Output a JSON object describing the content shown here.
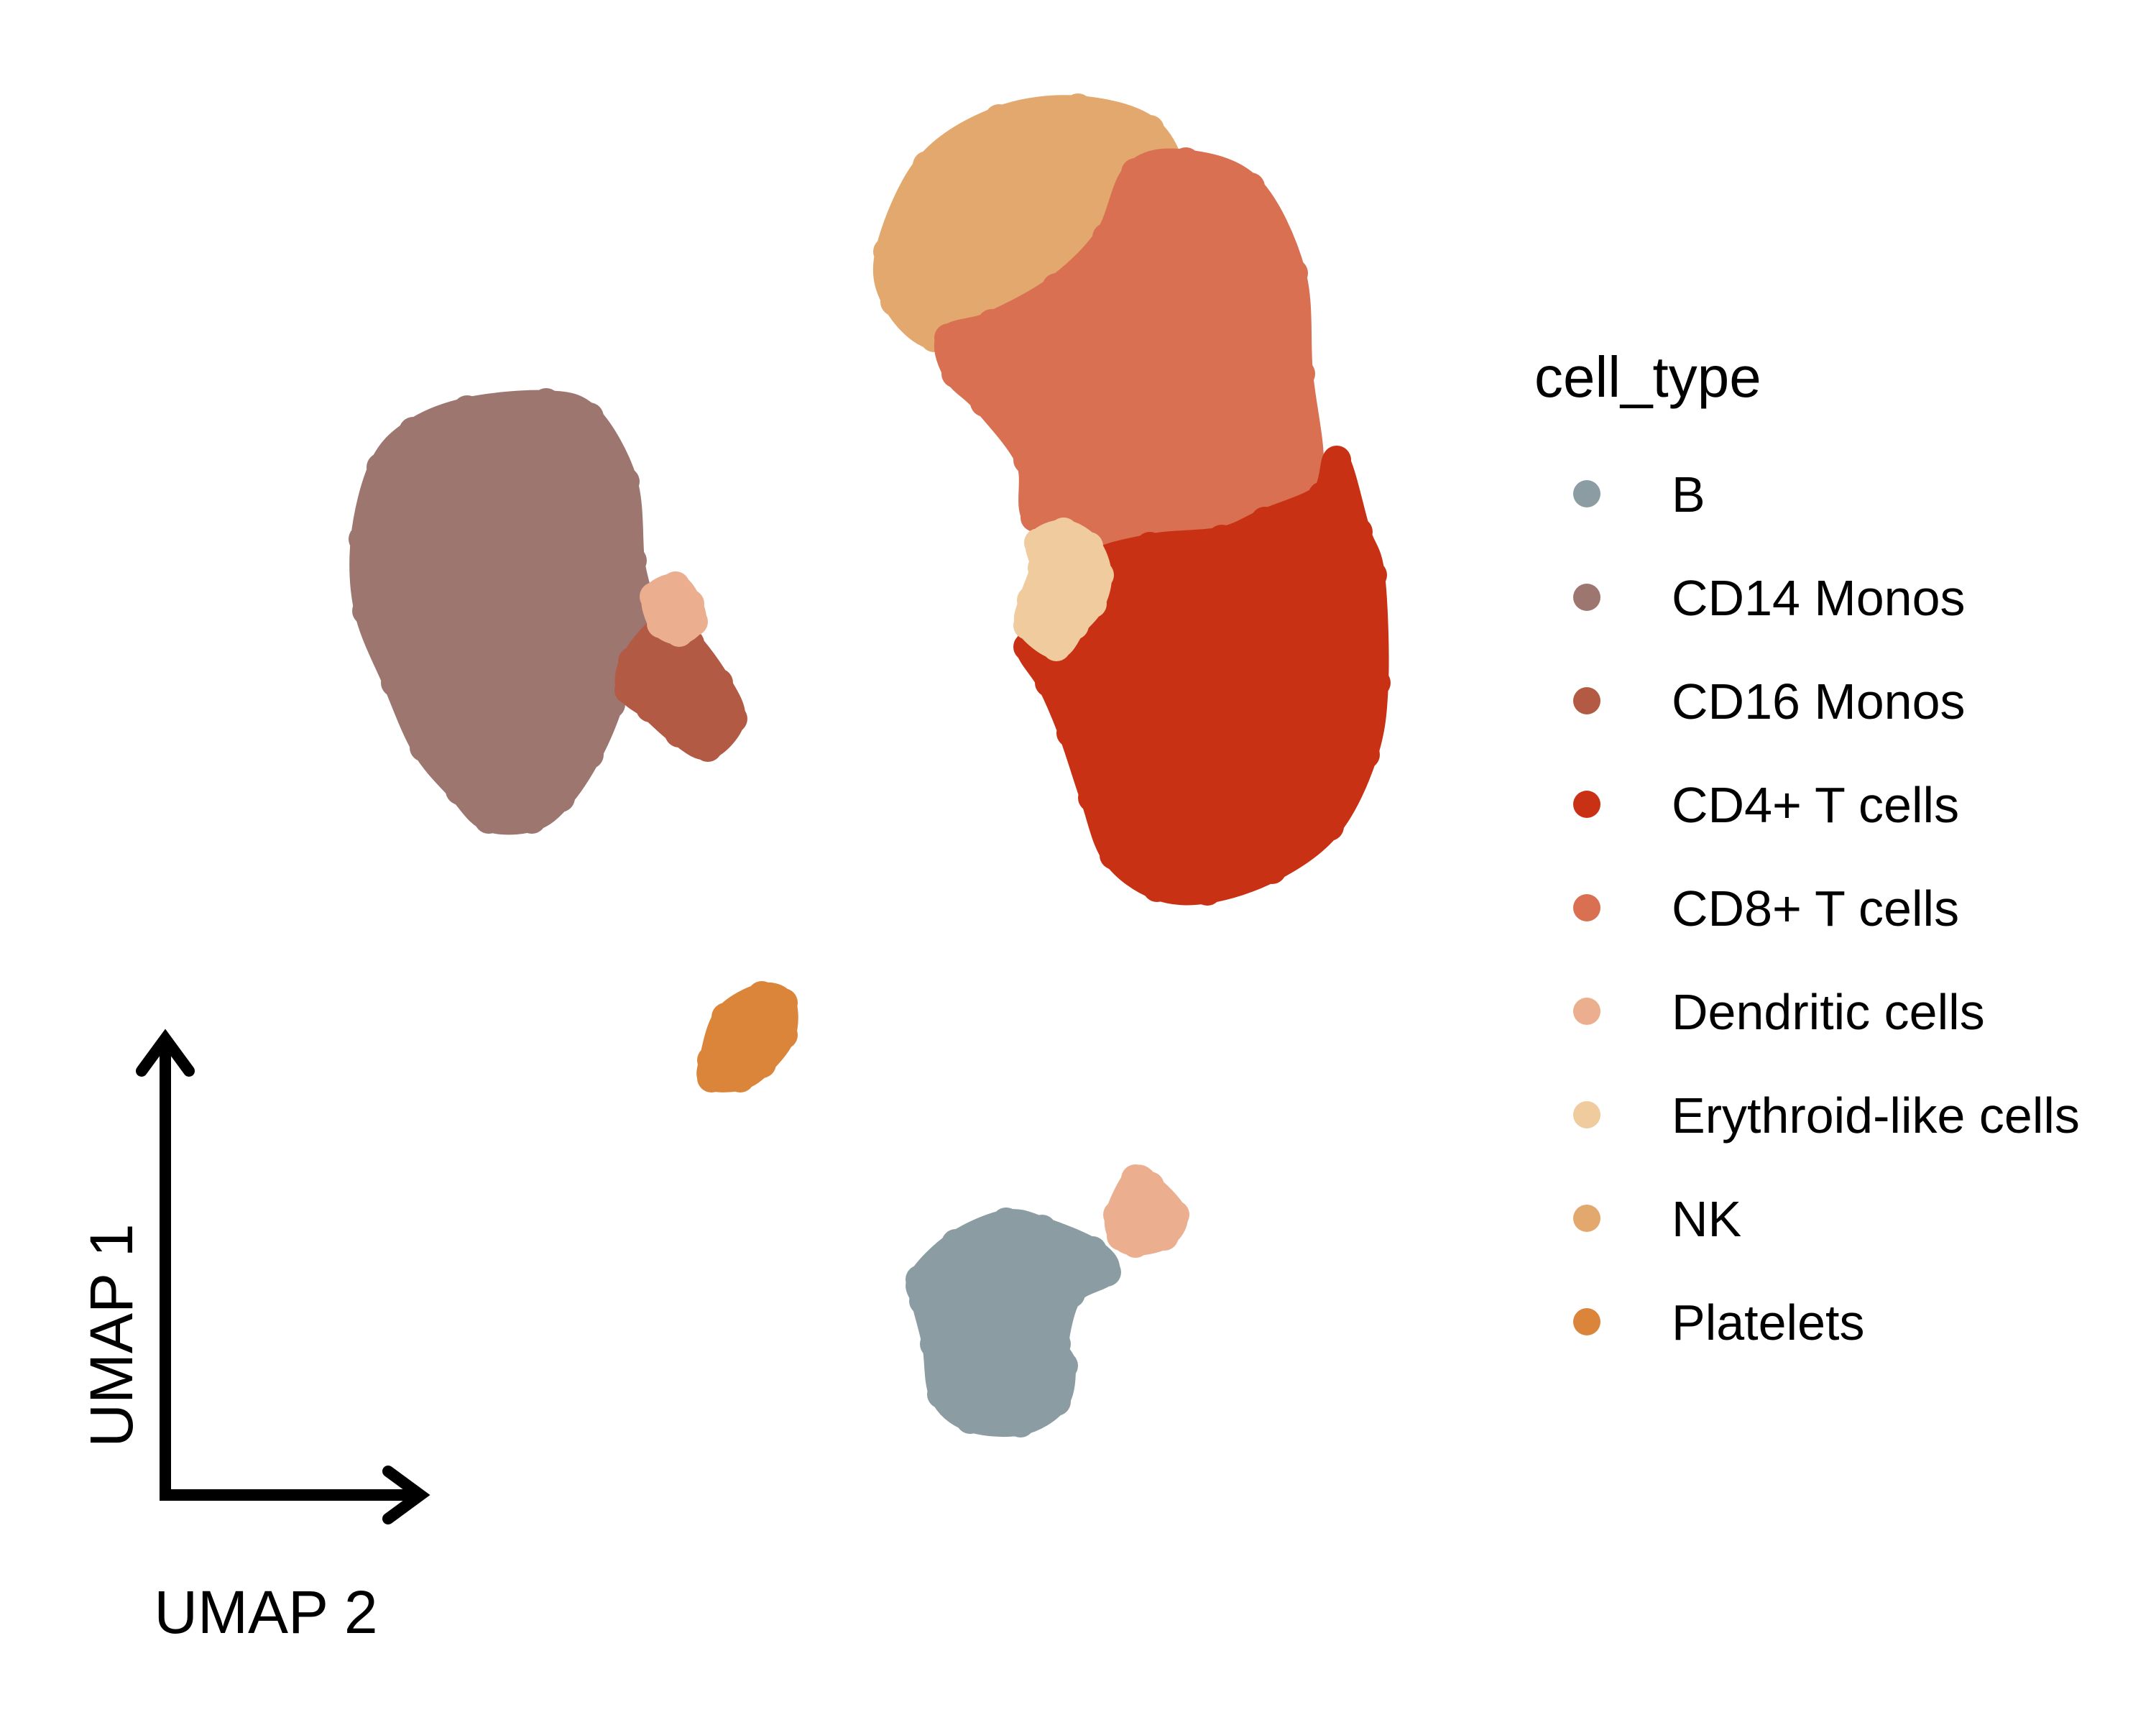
{
  "chart_data": {
    "type": "scatter",
    "xlabel": "UMAP 2",
    "ylabel": "UMAP 1",
    "grid": false,
    "legend_title": "cell_type",
    "legend_position": "right",
    "axis_style": "arrows-bottom-left",
    "series": [
      {
        "name": "B",
        "color": "#8b9ca3"
      },
      {
        "name": "CD14 Monos",
        "color": "#9e7670"
      },
      {
        "name": "CD16 Monos",
        "color": "#b35a45"
      },
      {
        "name": "CD4+ T cells",
        "color": "#c93114"
      },
      {
        "name": "CD8+ T cells",
        "color": "#d97052"
      },
      {
        "name": "Dendritic cells",
        "color": "#ebae8f"
      },
      {
        "name": "Erythroid-like cells",
        "color": "#f0cb9e"
      },
      {
        "name": "NK",
        "color": "#e3a86d"
      },
      {
        "name": "Platelets",
        "color": "#db853b"
      }
    ]
  }
}
